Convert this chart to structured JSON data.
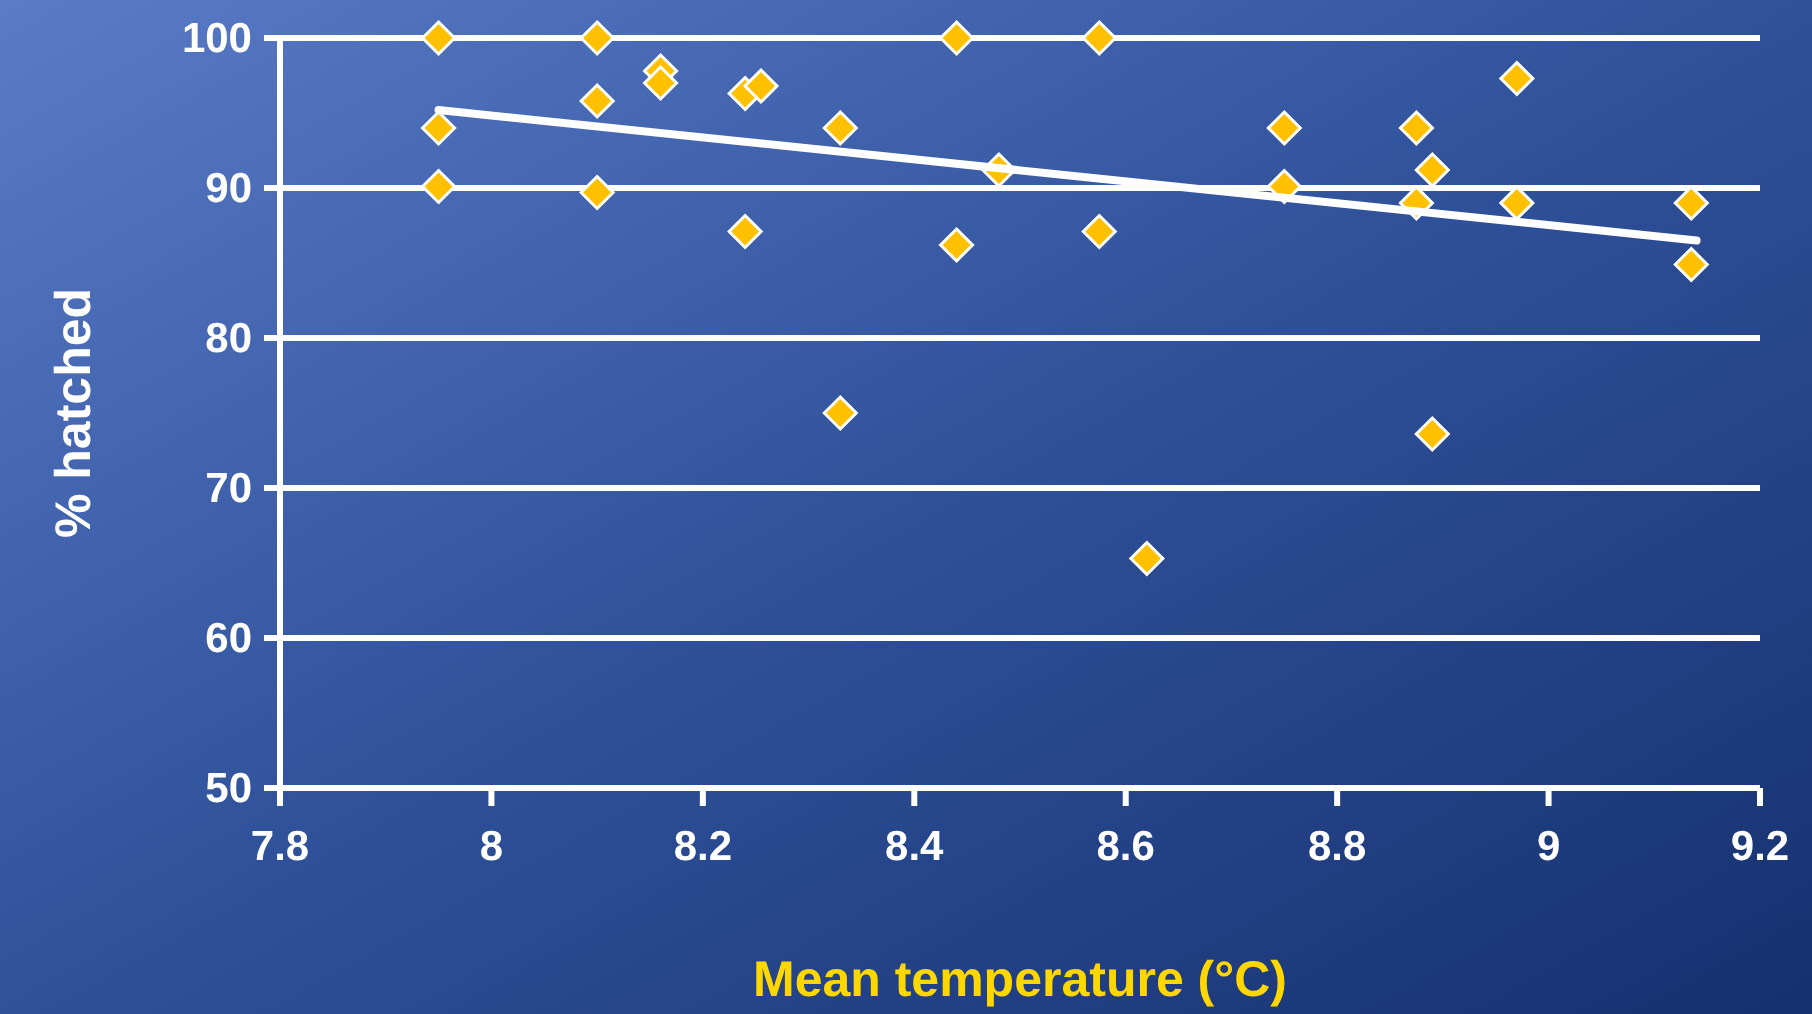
{
  "chart_data": {
    "type": "scatter",
    "xlabel": "Mean temperature (°C)",
    "ylabel": "% hatched",
    "xlim": [
      7.8,
      9.2
    ],
    "xticks": [
      7.8,
      8,
      8.2,
      8.4,
      8.6,
      8.8,
      9,
      9.2
    ],
    "ylim": [
      50,
      100
    ],
    "yticks": [
      50,
      60,
      70,
      80,
      90,
      100
    ],
    "grid": "y",
    "marker": "diamond",
    "series": [
      {
        "color": "#ffc000",
        "x": [
          7.95,
          7.95,
          7.95,
          8.1,
          8.1,
          8.1,
          8.16,
          8.16,
          8.24,
          8.255,
          8.24,
          8.33,
          8.33,
          8.44,
          8.44,
          8.48,
          8.575,
          8.575,
          8.62,
          8.75,
          8.75,
          8.875,
          8.89,
          8.875,
          8.89,
          8.97,
          8.97,
          9.135,
          9.135
        ],
        "values": [
          100,
          94,
          90.1,
          100,
          95.8,
          89.7,
          97.8,
          97,
          96.3,
          96.8,
          87.1,
          94,
          75,
          100,
          86.2,
          91.2,
          100,
          87.1,
          65.3,
          94,
          90.1,
          94,
          91.2,
          89,
          73.6,
          97.3,
          89,
          89,
          84.9
        ]
      },
      {
        "type": "line",
        "marker": "none",
        "color": "#ffffff",
        "x": [
          7.95,
          9.14
        ],
        "values": [
          95.2,
          86.5
        ]
      }
    ]
  }
}
